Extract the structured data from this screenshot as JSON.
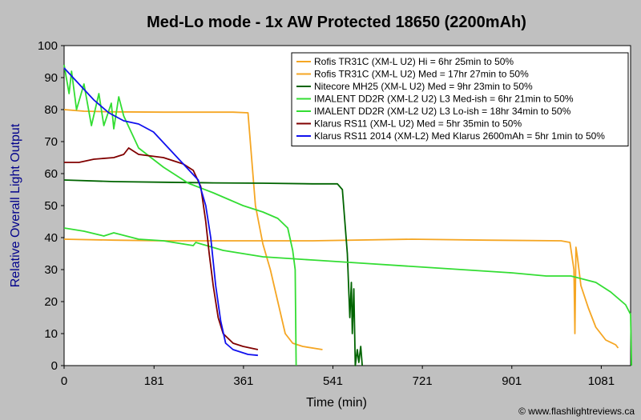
{
  "chart_data": {
    "type": "line",
    "title": "Med-Lo mode - 1x AW Protected 18650 (2200mAh)",
    "xlabel": "Time (min)",
    "ylabel": "Relative Overall Light Output",
    "xlim": [
      0,
      1140
    ],
    "ylim": [
      0,
      100
    ],
    "xticks": [
      0,
      181,
      361,
      541,
      721,
      901,
      1081
    ],
    "yticks": [
      0,
      10,
      20,
      30,
      40,
      50,
      60,
      70,
      80,
      90,
      100
    ],
    "grid": false,
    "legend_position": "top-right",
    "copyright": "© www.flashlightreviews.ca",
    "series": [
      {
        "name": "Rofis TR31C (XM-L U2) Hi = 6hr 25min to 50%",
        "color": "#f5a623",
        "points": [
          [
            0,
            80
          ],
          [
            40,
            79.5
          ],
          [
            100,
            79.3
          ],
          [
            200,
            79.2
          ],
          [
            300,
            79.2
          ],
          [
            340,
            79.2
          ],
          [
            370,
            79
          ],
          [
            385,
            50
          ],
          [
            400,
            38
          ],
          [
            415,
            30
          ],
          [
            430,
            20
          ],
          [
            445,
            10
          ],
          [
            460,
            7
          ],
          [
            480,
            6
          ],
          [
            520,
            5
          ]
        ]
      },
      {
        "name": "Rofis TR31C (XM-L U2) Med = 17hr 27min to 50%",
        "color": "#f5a623",
        "points": [
          [
            0,
            39.5
          ],
          [
            100,
            39.2
          ],
          [
            200,
            39
          ],
          [
            300,
            39
          ],
          [
            500,
            39
          ],
          [
            700,
            39.5
          ],
          [
            850,
            39.2
          ],
          [
            1000,
            39
          ],
          [
            1018,
            38.5
          ],
          [
            1026,
            30
          ],
          [
            1028,
            10
          ],
          [
            1030,
            37
          ],
          [
            1033,
            34
          ],
          [
            1040,
            25
          ],
          [
            1055,
            18
          ],
          [
            1070,
            12
          ],
          [
            1090,
            8
          ],
          [
            1110,
            6.5
          ],
          [
            1115,
            5.5
          ]
        ]
      },
      {
        "name": "Nitecore MH25 (XM-L U2) Med = 9hr 23min to 50%",
        "color": "#006400",
        "points": [
          [
            0,
            58
          ],
          [
            100,
            57.5
          ],
          [
            200,
            57.3
          ],
          [
            300,
            57.1
          ],
          [
            400,
            57
          ],
          [
            500,
            56.8
          ],
          [
            550,
            56.8
          ],
          [
            560,
            55
          ],
          [
            570,
            35
          ],
          [
            575,
            15
          ],
          [
            578,
            26
          ],
          [
            580,
            10
          ],
          [
            583,
            24
          ],
          [
            586,
            0
          ],
          [
            590,
            5
          ],
          [
            593,
            1
          ],
          [
            597,
            6
          ],
          [
            600,
            0
          ]
        ]
      },
      {
        "name": "IMALENT DD2R (XM-L2 U2) L3 Med-ish = 6hr 21min to 50%",
        "color": "#33dd33",
        "points": [
          [
            0,
            94
          ],
          [
            10,
            85
          ],
          [
            15,
            92
          ],
          [
            25,
            80
          ],
          [
            40,
            88
          ],
          [
            55,
            75
          ],
          [
            70,
            85
          ],
          [
            80,
            75
          ],
          [
            95,
            82
          ],
          [
            100,
            74
          ],
          [
            110,
            84
          ],
          [
            120,
            78
          ],
          [
            150,
            68
          ],
          [
            200,
            62
          ],
          [
            250,
            57
          ],
          [
            300,
            54
          ],
          [
            330,
            52
          ],
          [
            360,
            50
          ],
          [
            400,
            48
          ],
          [
            430,
            46
          ],
          [
            450,
            43
          ],
          [
            460,
            36
          ],
          [
            465,
            30
          ],
          [
            467,
            0
          ]
        ]
      },
      {
        "name": "IMALENT DD2R (XM-L2 U2) L3 Lo-ish = 18hr 34min to 50%",
        "color": "#33dd33",
        "points": [
          [
            0,
            43
          ],
          [
            40,
            42
          ],
          [
            80,
            40.5
          ],
          [
            100,
            41.5
          ],
          [
            150,
            39.5
          ],
          [
            200,
            39
          ],
          [
            260,
            37.5
          ],
          [
            265,
            38.5
          ],
          [
            320,
            36
          ],
          [
            400,
            34
          ],
          [
            500,
            33
          ],
          [
            600,
            32
          ],
          [
            700,
            31
          ],
          [
            800,
            30
          ],
          [
            900,
            29
          ],
          [
            970,
            28
          ],
          [
            1020,
            28
          ],
          [
            1070,
            26
          ],
          [
            1100,
            23
          ],
          [
            1130,
            19
          ],
          [
            1140,
            16
          ],
          [
            1142,
            0
          ]
        ]
      },
      {
        "name": "Klarus RS11 (XM-L U2) Med = 5hr 35min to 50%",
        "color": "#800000",
        "points": [
          [
            0,
            63.5
          ],
          [
            30,
            63.5
          ],
          [
            60,
            64.5
          ],
          [
            100,
            65
          ],
          [
            120,
            66
          ],
          [
            130,
            68
          ],
          [
            150,
            66
          ],
          [
            200,
            65
          ],
          [
            240,
            63
          ],
          [
            260,
            61
          ],
          [
            275,
            56
          ],
          [
            285,
            45
          ],
          [
            292,
            35
          ],
          [
            300,
            25
          ],
          [
            310,
            15
          ],
          [
            320,
            10
          ],
          [
            340,
            7
          ],
          [
            360,
            6
          ],
          [
            390,
            5
          ]
        ]
      },
      {
        "name": "Klarus RS11 2014 (XM-L2) Med Klarus 2600mAh = 5hr 1min to 50%",
        "color": "#1010ee",
        "points": [
          [
            0,
            93
          ],
          [
            30,
            88
          ],
          [
            60,
            83
          ],
          [
            90,
            79
          ],
          [
            120,
            76.5
          ],
          [
            150,
            75.5
          ],
          [
            180,
            73
          ],
          [
            210,
            68
          ],
          [
            240,
            63
          ],
          [
            270,
            58
          ],
          [
            285,
            50
          ],
          [
            295,
            40
          ],
          [
            305,
            25
          ],
          [
            315,
            14
          ],
          [
            325,
            7
          ],
          [
            340,
            5
          ],
          [
            370,
            3.5
          ],
          [
            390,
            3.2
          ]
        ]
      }
    ]
  }
}
